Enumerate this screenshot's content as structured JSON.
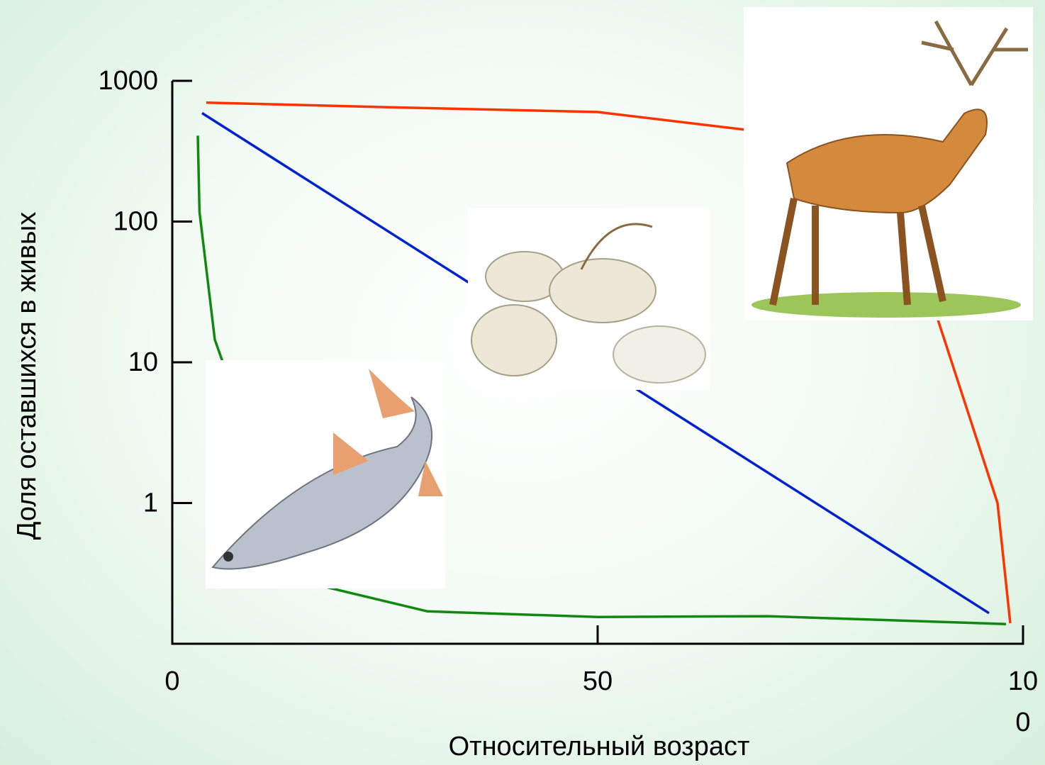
{
  "chart_data": {
    "type": "line",
    "xlabel": "Относительный возраст",
    "ylabel": "Доля оставшихся в живых",
    "xlim": [
      0,
      100
    ],
    "xticks": [
      0,
      50,
      100
    ],
    "ylim": [
      0.1,
      1000
    ],
    "yticks": [
      1,
      10,
      100,
      1000
    ],
    "log_y": true,
    "grid": false,
    "series": [
      {
        "color": "#ff3300",
        "x": [
          4,
          25,
          50,
          70,
          90,
          97,
          98.5
        ],
        "values": [
          700,
          650,
          600,
          430,
          20,
          1,
          0.14
        ]
      },
      {
        "color": "#0022cc",
        "x": [
          3.5,
          96
        ],
        "values": [
          590,
          0.165
        ]
      },
      {
        "color": "#118811",
        "x": [
          3,
          3.2,
          5,
          15,
          30,
          50,
          70,
          98
        ],
        "values": [
          408,
          117,
          14.5,
          0.28,
          0.17,
          0.155,
          0.157,
          0.138
        ]
      }
    ]
  }
}
